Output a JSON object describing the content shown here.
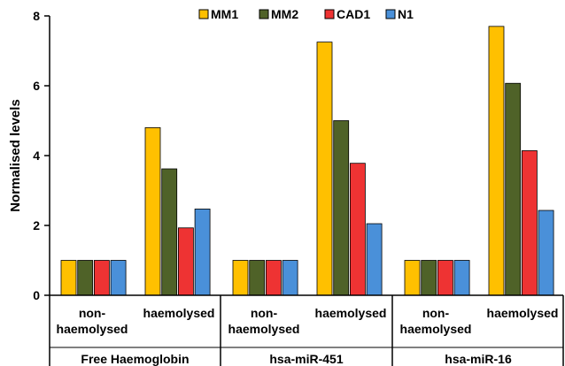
{
  "chart_data": {
    "type": "bar",
    "title": "",
    "ylabel": "Normalised levels",
    "ylim": [
      0,
      8
    ],
    "yticks": [
      "0",
      "2",
      "4",
      "6",
      "8"
    ],
    "legend_position": "top",
    "grid": false,
    "groups": [
      {
        "name": "Free Haemoglobin",
        "categories": [
          {
            "label_lines": [
              "non-",
              "haemolysed"
            ],
            "values": [
              1,
              1,
              1,
              1
            ]
          },
          {
            "label_lines": [
              "haemolysed"
            ],
            "values": [
              4.8,
              3.62,
              1.93,
              2.47
            ]
          }
        ]
      },
      {
        "name": "hsa-miR-451",
        "categories": [
          {
            "label_lines": [
              "non-",
              "haemolysed"
            ],
            "values": [
              1,
              1,
              1,
              1
            ]
          },
          {
            "label_lines": [
              "haemolysed"
            ],
            "values": [
              7.25,
              5.0,
              3.78,
              2.05
            ]
          }
        ]
      },
      {
        "name": "hsa-miR-16",
        "categories": [
          {
            "label_lines": [
              "non-",
              "haemolysed"
            ],
            "values": [
              1,
              1,
              1,
              1
            ]
          },
          {
            "label_lines": [
              "haemolysed"
            ],
            "values": [
              7.7,
              6.07,
              4.14,
              2.43
            ]
          }
        ]
      }
    ],
    "series": [
      {
        "name": "MM1",
        "color": "#FFC000"
      },
      {
        "name": "MM2",
        "color": "#4F6228"
      },
      {
        "name": "CAD1",
        "color": "#EE3333"
      },
      {
        "name": "N1",
        "color": "#4A90D9"
      }
    ]
  }
}
